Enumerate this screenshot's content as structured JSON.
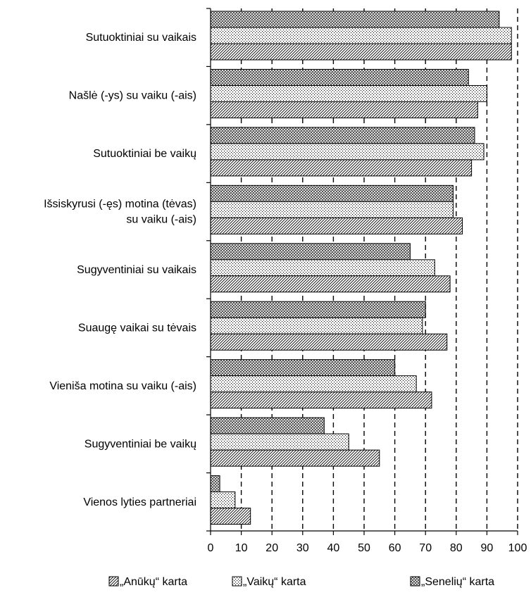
{
  "chart_data": {
    "type": "bar",
    "orientation": "horizontal",
    "categories": [
      "Sutuoktiniai su vaikais",
      "Našlė (-ys) su vaiku (-ais)",
      "Sutuoktiniai be vaikų",
      [
        "Išsiskyrusi (-ęs) motina (tėvas)",
        "su vaiku (-ais)"
      ],
      "Sugyventiniai su vaikais",
      "Suaugę vaikai su tėvais",
      "Vieniša motina su vaiku (-ais)",
      "Sugyventiniai be vaikų",
      "Vienos lyties partneriai"
    ],
    "series": [
      {
        "name": "„Senelių“ karta",
        "pattern": "crosshatch",
        "values": [
          94,
          84,
          86,
          79,
          65,
          70,
          60,
          37,
          3
        ]
      },
      {
        "name": "„Vaikų“ karta",
        "pattern": "dots",
        "values": [
          98,
          90,
          89,
          79,
          73,
          69,
          67,
          45,
          8
        ]
      },
      {
        "name": "„Anūkų“ karta",
        "pattern": "diagonal",
        "values": [
          98,
          87,
          85,
          82,
          78,
          77,
          72,
          55,
          13
        ]
      }
    ],
    "legend_order": [
      2,
      1,
      0
    ],
    "xlim": [
      0,
      100
    ],
    "xticks": [
      0,
      10,
      20,
      30,
      40,
      50,
      60,
      70,
      80,
      90,
      100
    ],
    "grid": "vertical dashed",
    "legend_position": "bottom"
  }
}
